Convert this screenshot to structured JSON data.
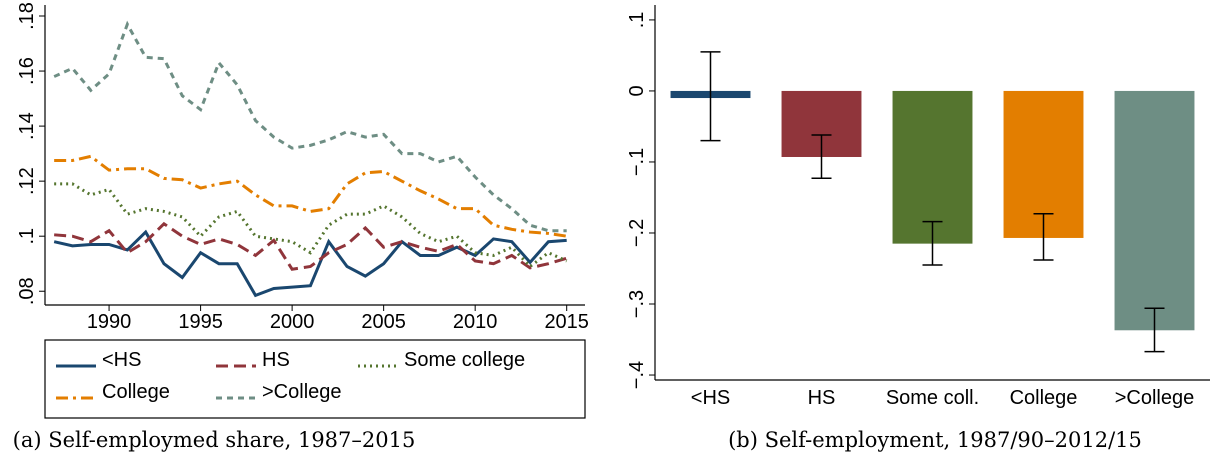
{
  "chart_data": [
    {
      "type": "line",
      "caption": "(a) Self-employmed share, 1987–2015",
      "x": [
        1987,
        1988,
        1989,
        1990,
        1991,
        1992,
        1993,
        1994,
        1995,
        1996,
        1997,
        1998,
        1999,
        2000,
        2001,
        2002,
        2003,
        2004,
        2005,
        2006,
        2007,
        2008,
        2009,
        2010,
        2011,
        2012,
        2013,
        2014,
        2015
      ],
      "xlim": [
        1986.5,
        2016
      ],
      "xticks": [
        1990,
        1995,
        2000,
        2005,
        2010,
        2015
      ],
      "ylim": [
        0.075,
        0.184
      ],
      "yticks": [
        {
          "value": 0.08,
          "label": ".08"
        },
        {
          "value": 0.1,
          "label": ".1"
        },
        {
          "value": 0.12,
          "label": ".12"
        },
        {
          "value": 0.14,
          "label": ".14"
        },
        {
          "value": 0.16,
          "label": ".16"
        },
        {
          "value": 0.18,
          "label": ".18"
        }
      ],
      "legend": "bottom",
      "series": [
        {
          "name": "<HS",
          "color": "#1a476f",
          "dash": "solid",
          "values": [
            0.098,
            0.0965,
            0.097,
            0.097,
            0.095,
            0.1015,
            0.09,
            0.085,
            0.094,
            0.09,
            0.09,
            0.0785,
            0.081,
            0.0815,
            0.082,
            0.098,
            0.089,
            0.0855,
            0.09,
            0.098,
            0.093,
            0.093,
            0.096,
            0.093,
            0.099,
            0.098,
            0.0905,
            0.098,
            0.0985
          ]
        },
        {
          "name": "HS",
          "color": "#90353b",
          "dash": "dash",
          "values": [
            0.1005,
            0.1,
            0.098,
            0.102,
            0.094,
            0.098,
            0.1045,
            0.1,
            0.097,
            0.099,
            0.097,
            0.093,
            0.0985,
            0.088,
            0.089,
            0.094,
            0.097,
            0.103,
            0.096,
            0.098,
            0.096,
            0.0945,
            0.097,
            0.091,
            0.09,
            0.093,
            0.0885,
            0.09,
            0.092
          ]
        },
        {
          "name": "Some college",
          "color": "#55752f",
          "dash": "dot",
          "values": [
            0.119,
            0.119,
            0.115,
            0.117,
            0.108,
            0.11,
            0.109,
            0.107,
            0.1,
            0.107,
            0.109,
            0.1,
            0.099,
            0.098,
            0.094,
            0.104,
            0.108,
            0.108,
            0.111,
            0.107,
            0.101,
            0.098,
            0.1,
            0.094,
            0.093,
            0.096,
            0.089,
            0.094,
            0.091
          ]
        },
        {
          "name": "College",
          "color": "#e37e00",
          "dash": "dashdot",
          "values": [
            0.1275,
            0.1275,
            0.129,
            0.124,
            0.1245,
            0.1245,
            0.121,
            0.1205,
            0.1175,
            0.119,
            0.12,
            0.115,
            0.111,
            0.111,
            0.109,
            0.11,
            0.119,
            0.123,
            0.1235,
            0.12,
            0.1165,
            0.1135,
            0.11,
            0.11,
            0.104,
            0.1025,
            0.1015,
            0.101,
            0.1
          ]
        },
        {
          "name": ">College",
          "color": "#6e8e84",
          "dash": "shortdash",
          "values": [
            0.158,
            0.161,
            0.153,
            0.159,
            0.177,
            0.165,
            0.1645,
            0.151,
            0.146,
            0.163,
            0.155,
            0.142,
            0.136,
            0.132,
            0.133,
            0.135,
            0.138,
            0.136,
            0.137,
            0.13,
            0.13,
            0.127,
            0.129,
            0.1215,
            0.115,
            0.11,
            0.104,
            0.102,
            0.102
          ]
        }
      ]
    },
    {
      "type": "bar",
      "caption": "(b) Self-employment, 1987/90–2012/15",
      "categories": [
        "<HS",
        "HS",
        "Some coll.",
        "College",
        ">College"
      ],
      "colors": [
        "#1a476f",
        "#90353b",
        "#55752f",
        "#e37e00",
        "#6e8e84"
      ],
      "values": [
        -0.01,
        -0.093,
        -0.215,
        -0.207,
        -0.337
      ],
      "error_low": [
        -0.07,
        -0.123,
        -0.245,
        -0.238,
        -0.367
      ],
      "error_high": [
        0.055,
        -0.062,
        -0.184,
        -0.173,
        -0.306
      ],
      "ylim": [
        -0.407,
        0.121
      ],
      "yticks": [
        {
          "value": -0.4,
          "label": "−.4"
        },
        {
          "value": -0.3,
          "label": "−.3"
        },
        {
          "value": -0.2,
          "label": "−.2"
        },
        {
          "value": -0.1,
          "label": "−.1"
        },
        0,
        {
          "value": 0.1,
          "label": ".1"
        }
      ]
    }
  ]
}
